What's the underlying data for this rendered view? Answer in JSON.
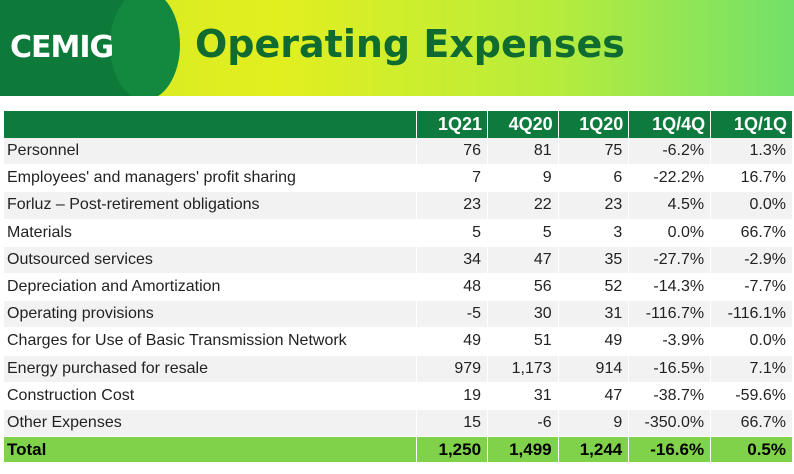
{
  "header": {
    "logo": "CEMIG",
    "title": "Operating Expenses"
  },
  "table": {
    "columns": [
      "",
      "1Q21",
      "4Q20",
      "1Q20",
      "1Q/4Q",
      "1Q/1Q"
    ],
    "rows": [
      [
        "Personnel",
        "76",
        "81",
        "75",
        "-6.2%",
        "1.3%"
      ],
      [
        "Employees' and managers' profit sharing",
        "7",
        "9",
        "6",
        "-22.2%",
        "16.7%"
      ],
      [
        "Forluz – Post-retirement obligations",
        "23",
        "22",
        "23",
        "4.5%",
        "0.0%"
      ],
      [
        "Materials",
        "5",
        "5",
        "3",
        "0.0%",
        "66.7%"
      ],
      [
        "Outsourced services",
        "34",
        "47",
        "35",
        "-27.7%",
        "-2.9%"
      ],
      [
        "Depreciation and Amortization",
        "48",
        "56",
        "52",
        "-14.3%",
        "-7.7%"
      ],
      [
        "Operating provisions",
        "-5",
        "30",
        "31",
        "-116.7%",
        "-116.1%"
      ],
      [
        "Charges for Use of Basic Transmission Network",
        "49",
        "51",
        "49",
        "-3.9%",
        "0.0%"
      ],
      [
        "Energy purchased for resale",
        "979",
        "1,173",
        "914",
        "-16.5%",
        "7.1%"
      ],
      [
        "Construction Cost",
        "19",
        "31",
        "47",
        "-38.7%",
        "-59.6%"
      ],
      [
        "Other Expenses",
        "15",
        "-6",
        "9",
        "-350.0%",
        "66.7%"
      ]
    ],
    "total": [
      "Total",
      "1,250",
      "1,499",
      "1,244",
      "-16.6%",
      "0.5%"
    ]
  }
}
